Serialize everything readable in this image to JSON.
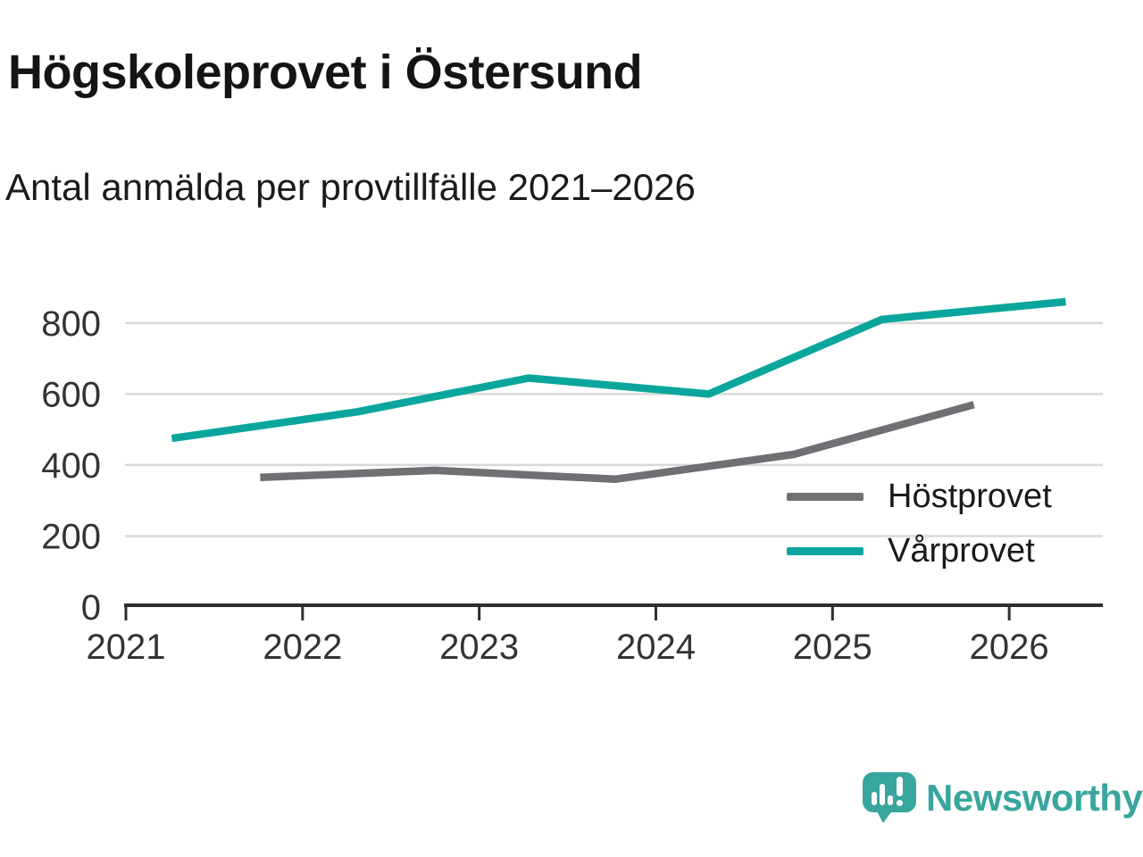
{
  "header": {
    "title": "Högskoleprovet i Östersund",
    "subtitle": "Antal anmälda per provtillfälle 2021–2026"
  },
  "chart_data": {
    "type": "line",
    "title": "Högskoleprovet i Östersund",
    "subtitle": "Antal anmälda per provtillfälle 2021–2026",
    "xlabel": "",
    "ylabel": "",
    "x_tick_labels": [
      "2021",
      "2022",
      "2023",
      "2024",
      "2025",
      "2026"
    ],
    "x_tick_values": [
      2021,
      2022,
      2023,
      2024,
      2025,
      2026
    ],
    "y_tick_labels": [
      "0",
      "200",
      "400",
      "600",
      "800"
    ],
    "y_tick_values": [
      0,
      200,
      400,
      600,
      800
    ],
    "xlim": [
      2021,
      2026.53
    ],
    "ylim": [
      0,
      880
    ],
    "grid": true,
    "legend_position": "inside lower right",
    "axis_color": "#2e2e2e",
    "grid_color": "#d9d9d9",
    "tick_label_color": "#333333",
    "series": [
      {
        "name": "Höstprovet",
        "color": "#6f7073",
        "x": [
          2021.76,
          2022.75,
          2023.77,
          2024.78,
          2025.8
        ],
        "values": [
          365,
          385,
          360,
          430,
          570
        ]
      },
      {
        "name": "Vårprovet",
        "color": "#0aa69d",
        "x": [
          2021.26,
          2022.31,
          2023.28,
          2024.3,
          2025.28,
          2026.32
        ],
        "values": [
          475,
          550,
          645,
          600,
          810,
          860
        ]
      }
    ]
  },
  "footer": {
    "brand": "Newsworthy",
    "brand_color": "#38a69c",
    "logo_icon": "bar-chart-speech-bubble-icon"
  }
}
